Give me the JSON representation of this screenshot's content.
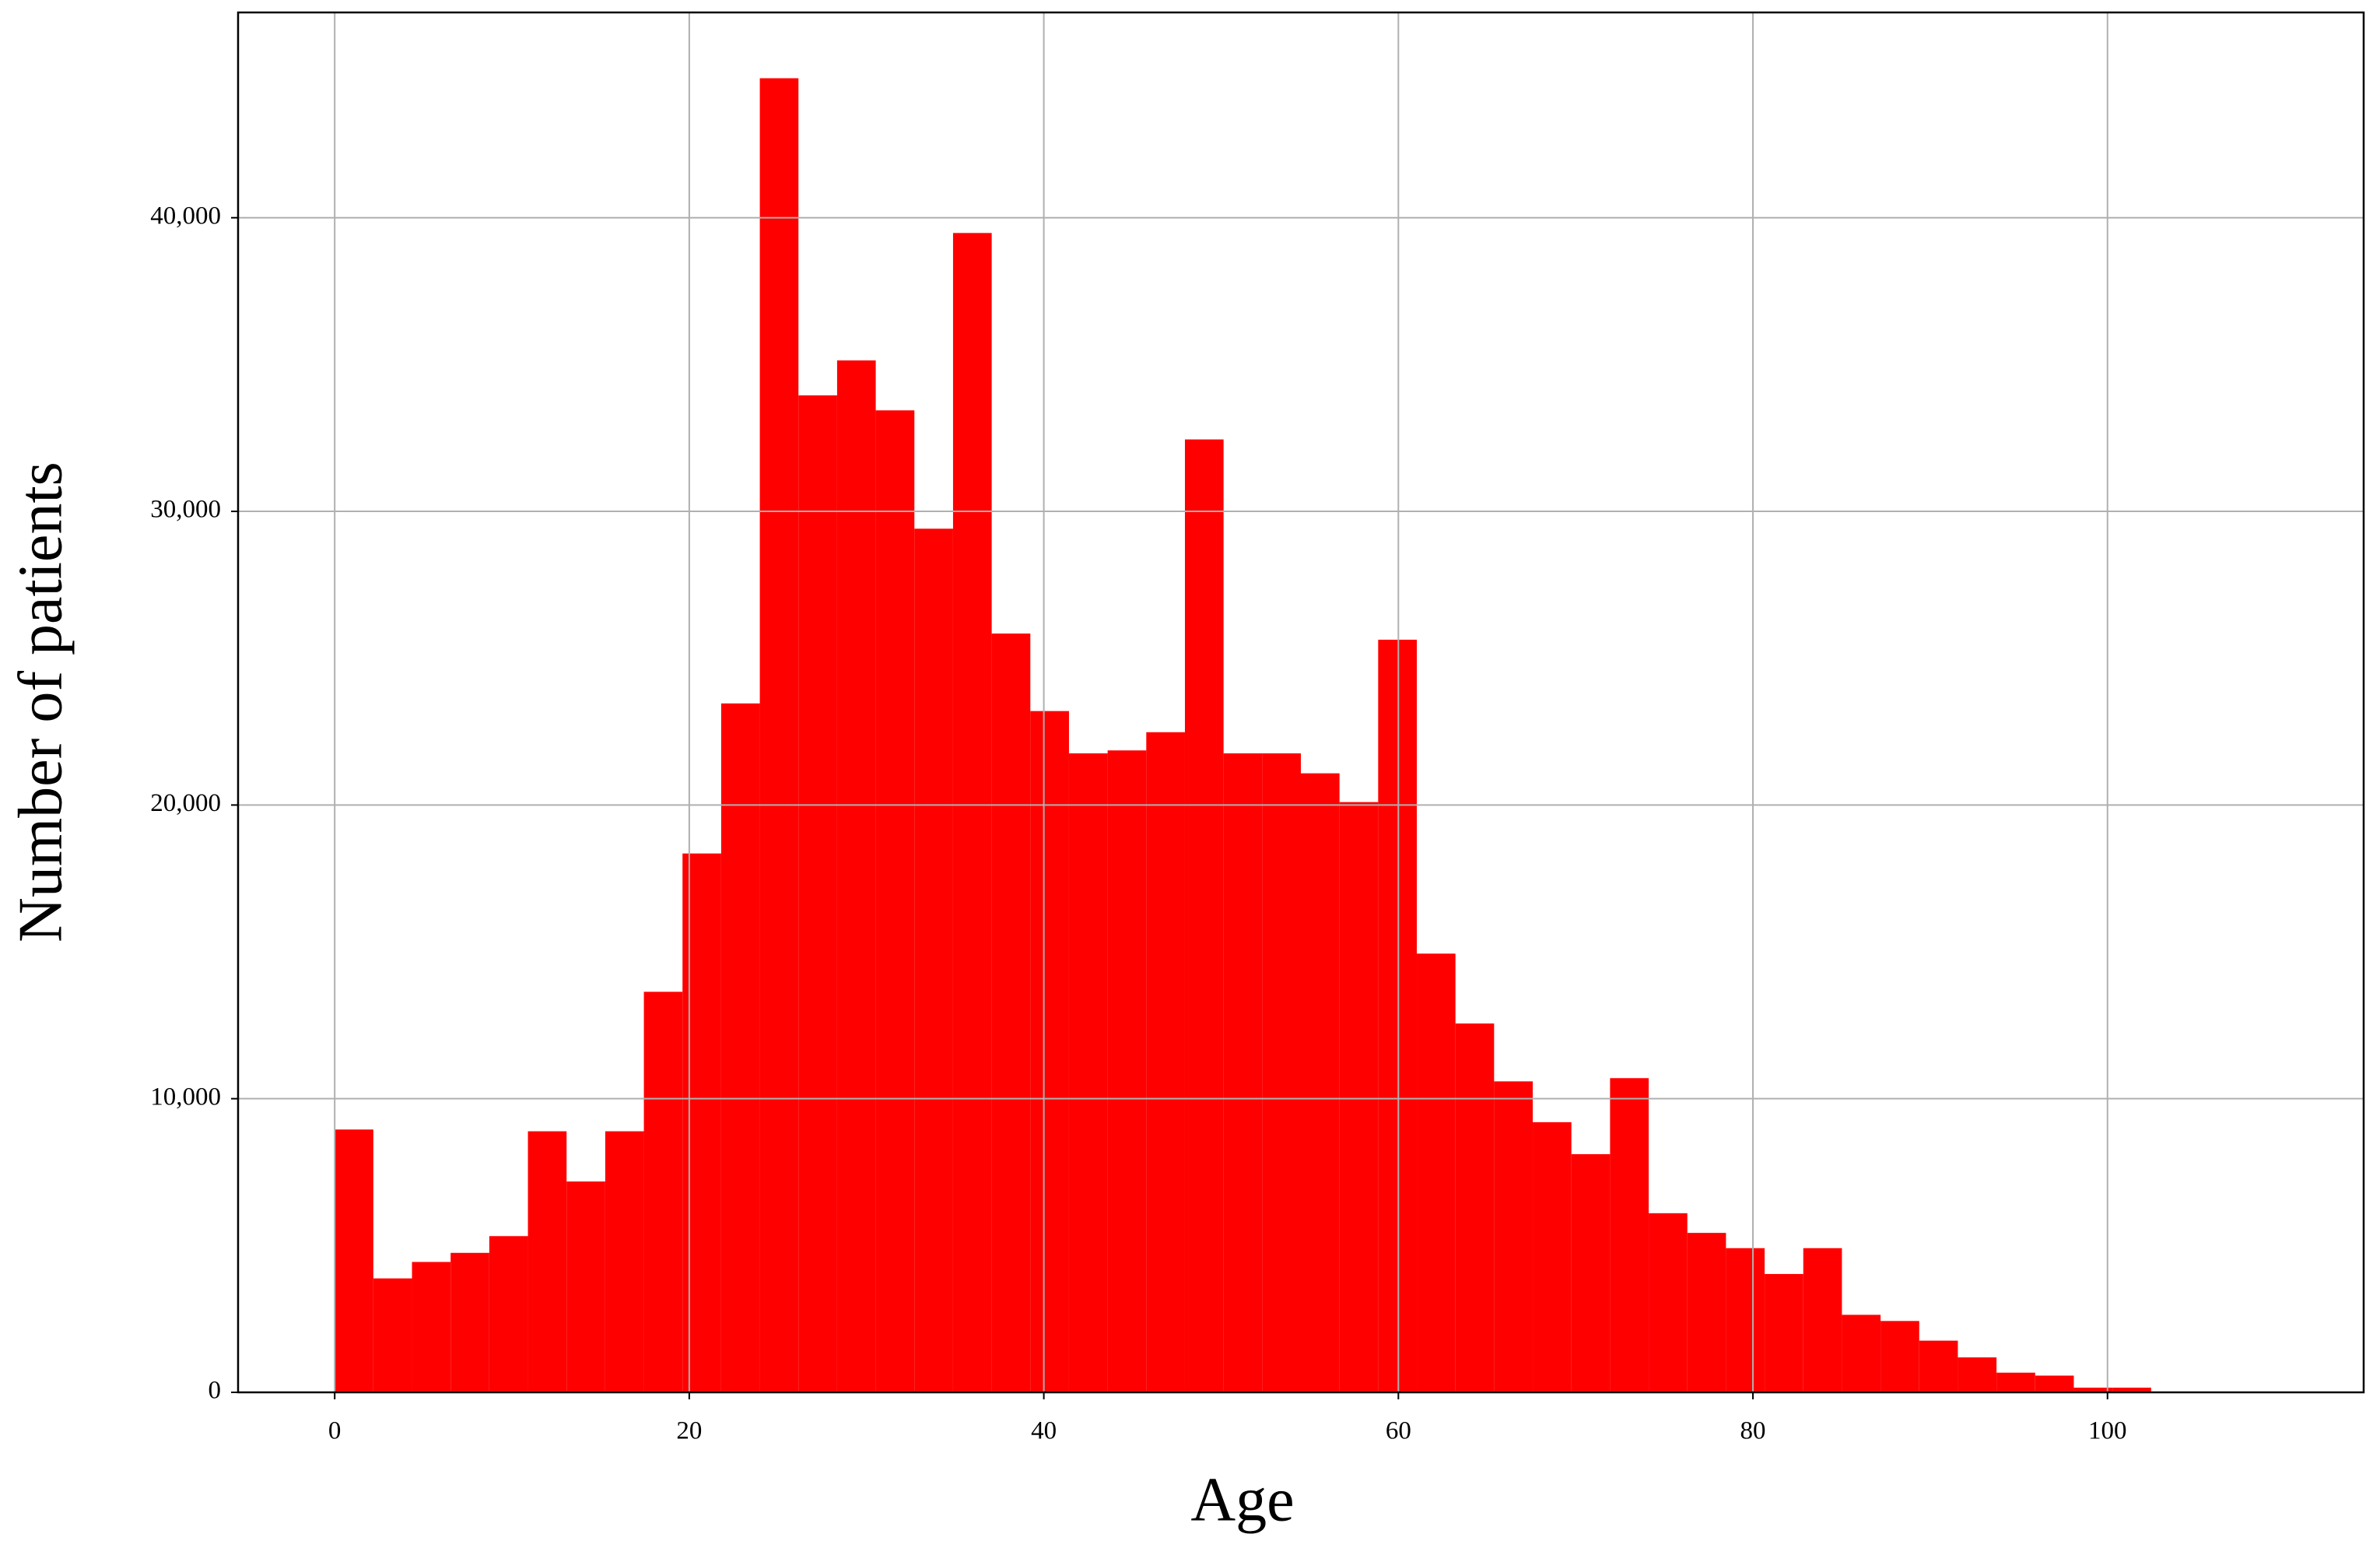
{
  "chart_data": {
    "type": "histogram",
    "xlabel": "Age",
    "ylabel": "Number of patients",
    "bins": [
      0,
      2.18,
      4.36,
      6.54,
      8.72,
      10.9,
      13.08,
      15.26,
      17.44,
      19.62,
      21.8,
      23.98,
      26.16,
      28.34,
      30.52,
      32.7,
      34.88,
      37.06,
      39.24,
      41.42,
      43.6,
      45.78,
      47.96,
      50.14,
      52.32,
      54.5,
      56.68,
      58.86,
      61.04,
      63.22,
      65.4,
      67.58,
      69.76,
      71.94,
      74.12,
      76.3,
      78.48,
      80.66,
      82.84,
      85.02,
      87.2,
      89.38,
      91.56,
      93.74,
      95.92,
      98.1,
      100.28,
      102.46,
      104.64,
      106.82,
      109
    ],
    "values": [
      8950,
      3880,
      4440,
      4750,
      5320,
      8890,
      7180,
      8890,
      13640,
      18350,
      23460,
      44750,
      33950,
      35140,
      33440,
      29410,
      39480,
      25840,
      23200,
      21760,
      21860,
      22480,
      32450,
      21760,
      21760,
      21080,
      20100,
      25630,
      14940,
      12560,
      10590,
      9200,
      8110,
      10700,
      6100,
      5430,
      4910,
      4030,
      4910,
      2640,
      2430,
      1760,
      1190,
      670,
      570,
      160,
      160,
      20,
      20,
      20
    ],
    "color": "#ff0000",
    "xlim": [
      -5.45,
      114.45
    ],
    "ylim": [
      0,
      46990
    ],
    "xticks": [
      0,
      20,
      40,
      60,
      80,
      100
    ],
    "yticks": [
      0,
      {
        "value": 10000,
        "label": "10,000"
      },
      {
        "value": 20000,
        "label": "20,000"
      },
      {
        "value": 30000,
        "label": "30,000"
      },
      {
        "value": 40000,
        "label": "40,000"
      }
    ],
    "grid": true
  }
}
